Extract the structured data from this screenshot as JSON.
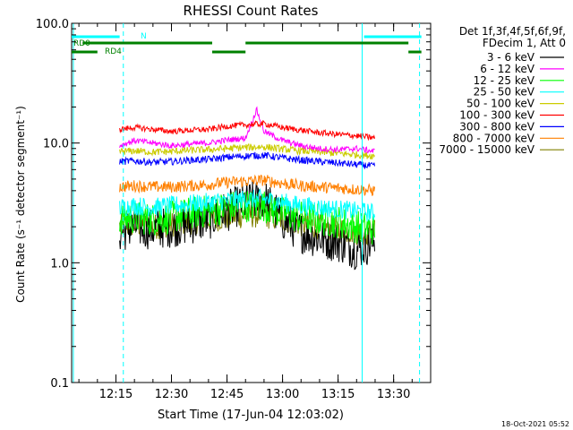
{
  "chart_data": {
    "type": "line",
    "title": "RHESSI Count Rates",
    "xlabel": "Start Time (17-Jun-04 12:03:02)",
    "ylabel": "Count Rate (s⁻¹ detector segment⁻¹)",
    "yscale": "log",
    "ylim": [
      0.1,
      100
    ],
    "xlim": [
      "12:03:02",
      "13:40:00"
    ],
    "y_ticks": [
      "0.1",
      "1.0",
      "10.0",
      "100.0"
    ],
    "x_ticks": [
      "12:15",
      "12:30",
      "12:45",
      "13:00",
      "13:15",
      "13:30"
    ],
    "grid": false,
    "legend_position": "right",
    "legend_header": [
      "Det 1f,3f,4f,5f,6f,9f,",
      "FDecim 1, Att 0"
    ],
    "series": [
      {
        "name": "3 - 6 keV",
        "color": "#000000",
        "x": [
          "12:16",
          "12:20",
          "12:25",
          "12:30",
          "12:35",
          "12:40",
          "12:45",
          "12:50",
          "12:55",
          "13:00",
          "13:05",
          "13:10",
          "13:15",
          "13:20",
          "13:25"
        ],
        "values": [
          1.8,
          2.0,
          1.9,
          2.0,
          2.1,
          2.3,
          2.7,
          3.2,
          3.4,
          2.3,
          1.8,
          1.6,
          1.5,
          1.3,
          1.5
        ]
      },
      {
        "name": "6 - 12 keV",
        "color": "#ff00ff",
        "x": [
          "12:16",
          "12:20",
          "12:25",
          "12:30",
          "12:35",
          "12:40",
          "12:45",
          "12:50",
          "12:53",
          "12:55",
          "13:00",
          "13:05",
          "13:10",
          "13:15",
          "13:20",
          "13:25"
        ],
        "values": [
          9.5,
          10.5,
          10.0,
          9.5,
          9.8,
          10.0,
          10.6,
          11.0,
          19.0,
          12.5,
          10.5,
          9.5,
          9.0,
          8.8,
          9.0,
          8.5
        ]
      },
      {
        "name": "12 - 25 keV",
        "color": "#00ff00",
        "x": [
          "12:16",
          "12:20",
          "12:25",
          "12:30",
          "12:35",
          "12:40",
          "12:45",
          "12:50",
          "12:55",
          "13:00",
          "13:05",
          "13:10",
          "13:15",
          "13:20",
          "13:25"
        ],
        "values": [
          2.3,
          2.4,
          2.3,
          2.4,
          2.6,
          2.7,
          2.9,
          3.0,
          3.0,
          2.6,
          2.4,
          2.3,
          2.2,
          2.0,
          1.9
        ]
      },
      {
        "name": "25 - 50 keV",
        "color": "#00ffff",
        "x": [
          "12:16",
          "12:20",
          "12:25",
          "12:30",
          "12:35",
          "12:40",
          "12:45",
          "12:50",
          "12:55",
          "13:00",
          "13:05",
          "13:10",
          "13:15",
          "13:20",
          "13:25"
        ],
        "values": [
          2.9,
          3.0,
          2.9,
          3.0,
          3.1,
          3.2,
          3.3,
          3.4,
          3.4,
          3.2,
          3.0,
          2.9,
          2.8,
          2.7,
          2.6
        ]
      },
      {
        "name": "50 - 100 keV",
        "color": "#cccc00",
        "x": [
          "12:16",
          "12:20",
          "12:25",
          "12:30",
          "12:35",
          "12:40",
          "12:45",
          "12:50",
          "12:55",
          "13:00",
          "13:05",
          "13:10",
          "13:15",
          "13:20",
          "13:25"
        ],
        "values": [
          8.5,
          8.6,
          8.4,
          8.5,
          8.7,
          8.8,
          9.0,
          9.2,
          9.3,
          8.9,
          8.6,
          8.4,
          8.2,
          8.0,
          7.8
        ]
      },
      {
        "name": "100 - 300 keV",
        "color": "#ff0000",
        "x": [
          "12:16",
          "12:20",
          "12:25",
          "12:30",
          "12:35",
          "12:40",
          "12:45",
          "12:50",
          "12:55",
          "13:00",
          "13:05",
          "13:10",
          "13:15",
          "13:20",
          "13:25"
        ],
        "values": [
          13.0,
          13.5,
          13.0,
          12.5,
          12.8,
          13.0,
          13.8,
          14.2,
          14.5,
          13.5,
          12.8,
          12.2,
          11.8,
          11.5,
          11.0
        ]
      },
      {
        "name": "300 - 800 keV",
        "color": "#0000ff",
        "x": [
          "12:16",
          "12:20",
          "12:25",
          "12:30",
          "12:35",
          "12:40",
          "12:45",
          "12:50",
          "12:55",
          "13:00",
          "13:05",
          "13:10",
          "13:15",
          "13:20",
          "13:25"
        ],
        "values": [
          7.0,
          7.1,
          6.9,
          7.0,
          7.2,
          7.3,
          7.6,
          7.8,
          7.9,
          7.5,
          7.2,
          7.0,
          6.8,
          6.6,
          6.4
        ]
      },
      {
        "name": "800 - 7000 keV",
        "color": "#ff8000",
        "x": [
          "12:16",
          "12:20",
          "12:25",
          "12:30",
          "12:35",
          "12:40",
          "12:45",
          "12:50",
          "12:55",
          "13:00",
          "13:05",
          "13:10",
          "13:15",
          "13:20",
          "13:25"
        ],
        "values": [
          4.3,
          4.4,
          4.3,
          4.3,
          4.4,
          4.5,
          4.7,
          4.8,
          4.9,
          4.6,
          4.4,
          4.3,
          4.2,
          4.1,
          4.0
        ]
      },
      {
        "name": "7000 - 15000 keV",
        "color": "#808000",
        "x": [
          "12:16",
          "12:20",
          "12:25",
          "12:30",
          "12:35",
          "12:40",
          "12:45",
          "12:50",
          "12:55",
          "13:00",
          "13:05",
          "13:10",
          "13:15",
          "13:20",
          "13:25"
        ],
        "values": [
          2.0,
          2.1,
          2.0,
          2.1,
          2.2,
          2.3,
          2.4,
          2.5,
          2.5,
          2.3,
          2.1,
          2.0,
          1.9,
          1.8,
          1.8
        ]
      }
    ],
    "annotations": {
      "flag_labels": [
        "RD0",
        "RD4",
        "N"
      ],
      "flag_bars": [
        {
          "label": "N",
          "color": "#00ffff",
          "level": "N",
          "segments": [
            [
              "12:03:02",
              "12:16:00"
            ],
            [
              "13:22:00",
              "13:37:30"
            ]
          ]
        },
        {
          "label": "RD0",
          "color": "#008000",
          "level": "RD0",
          "segments": [
            [
              "12:06:00",
              "12:41:00"
            ],
            [
              "12:50:00",
              "13:34:00"
            ]
          ]
        },
        {
          "label": "RD4",
          "color": "#008000",
          "level": "RD4",
          "segments": [
            [
              "12:03:02",
              "12:10:00"
            ],
            [
              "12:41:00",
              "12:50:00"
            ],
            [
              "13:34:00",
              "13:37:30"
            ]
          ]
        }
      ],
      "vlines": [
        {
          "time": "12:03:30",
          "color": "#00ffff",
          "style": "solid"
        },
        {
          "time": "12:17:00",
          "color": "#00ffff",
          "style": "dashed"
        },
        {
          "time": "13:21:30",
          "color": "#00ffff",
          "style": "solid"
        },
        {
          "time": "13:37:00",
          "color": "#00ffff",
          "style": "dashed"
        }
      ]
    }
  },
  "timestamp": "18-Oct-2021 05:52"
}
